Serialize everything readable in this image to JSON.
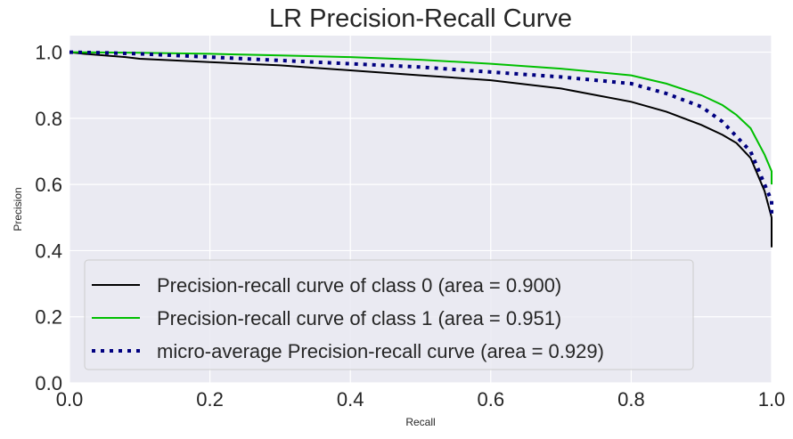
{
  "chart_data": {
    "type": "line",
    "title": "LR Precision-Recall Curve",
    "xlabel": "Recall",
    "ylabel": "Precision",
    "xlim": [
      0,
      1
    ],
    "ylim": [
      0,
      1.05
    ],
    "xticks": [
      "0.0",
      "0.2",
      "0.4",
      "0.6",
      "0.8",
      "1.0"
    ],
    "yticks": [
      "0.0",
      "0.2",
      "0.4",
      "0.6",
      "0.8",
      "1.0"
    ],
    "grid": true,
    "legend_position": "lower-left",
    "background": "#EAEAF2",
    "series": [
      {
        "name": "Precision-recall curve of class 0 (area = 0.900)",
        "color": "#000000",
        "style": "solid",
        "x": [
          0,
          0.02,
          0.05,
          0.08,
          0.1,
          0.2,
          0.3,
          0.4,
          0.5,
          0.6,
          0.7,
          0.8,
          0.85,
          0.9,
          0.93,
          0.95,
          0.97,
          0.99,
          1.0,
          1.0
        ],
        "y": [
          1.0,
          0.995,
          0.99,
          0.985,
          0.98,
          0.97,
          0.96,
          0.945,
          0.93,
          0.915,
          0.89,
          0.85,
          0.82,
          0.78,
          0.75,
          0.725,
          0.68,
          0.58,
          0.5,
          0.41
        ]
      },
      {
        "name": "Precision-recall curve of class 1 (area = 0.951)",
        "color": "#00BF00",
        "style": "solid",
        "x": [
          0,
          0.1,
          0.2,
          0.3,
          0.4,
          0.5,
          0.6,
          0.7,
          0.8,
          0.85,
          0.9,
          0.93,
          0.95,
          0.97,
          0.99,
          1.0,
          1.0
        ],
        "y": [
          1.0,
          0.998,
          0.995,
          0.99,
          0.985,
          0.977,
          0.965,
          0.95,
          0.93,
          0.905,
          0.87,
          0.84,
          0.81,
          0.77,
          0.69,
          0.64,
          0.6
        ]
      },
      {
        "name": "micro-average Precision-recall curve (area = 0.929)",
        "color": "#000080",
        "style": "dotted",
        "x": [
          0,
          0.05,
          0.1,
          0.2,
          0.3,
          0.4,
          0.5,
          0.6,
          0.7,
          0.8,
          0.85,
          0.9,
          0.93,
          0.95,
          0.97,
          0.99,
          1.0,
          1.0
        ],
        "y": [
          1.0,
          0.998,
          0.995,
          0.985,
          0.975,
          0.965,
          0.955,
          0.94,
          0.925,
          0.905,
          0.875,
          0.835,
          0.79,
          0.745,
          0.7,
          0.6,
          0.55,
          0.5
        ]
      }
    ]
  }
}
